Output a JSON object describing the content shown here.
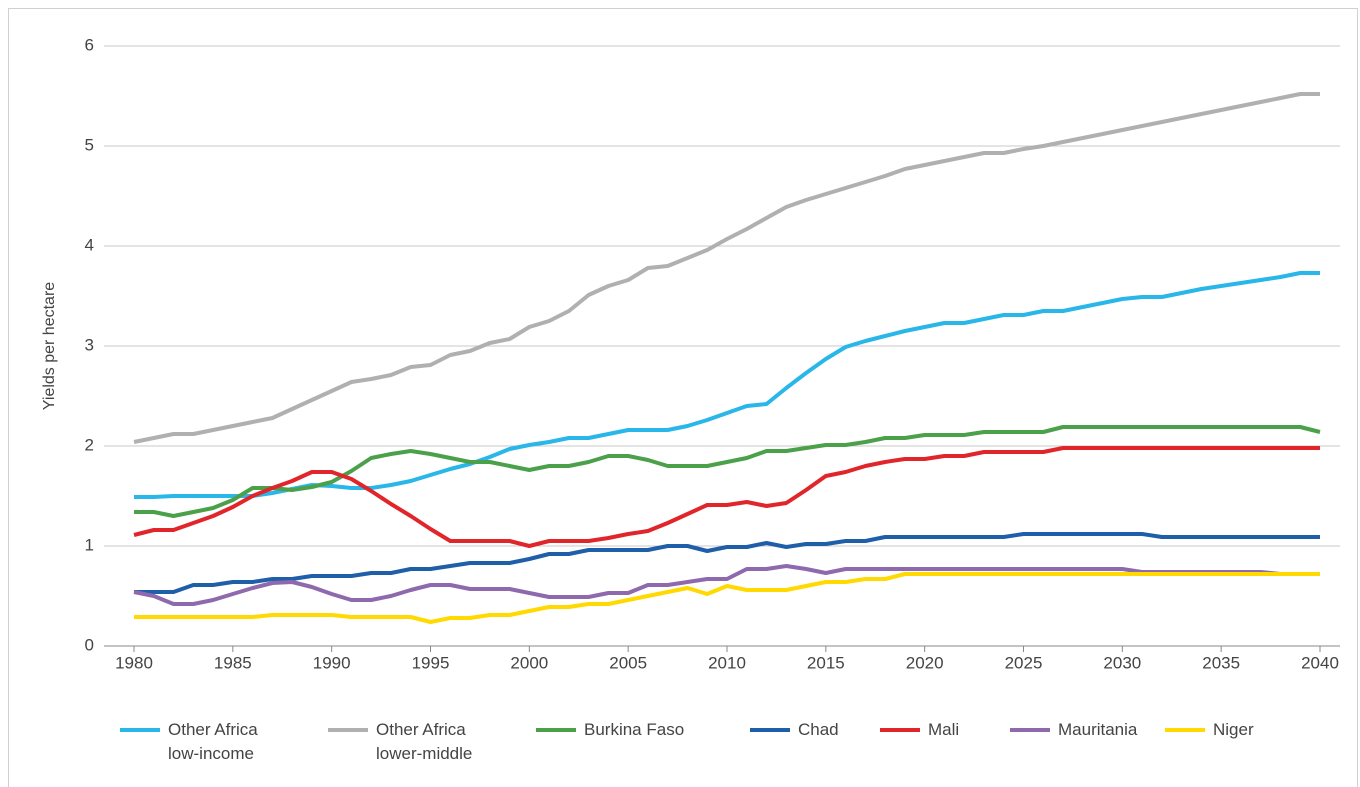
{
  "chart_data": {
    "type": "line",
    "y_label": "Yields per hectare",
    "x": [
      1980,
      1981,
      1982,
      1983,
      1984,
      1985,
      1986,
      1987,
      1988,
      1989,
      1990,
      1991,
      1992,
      1993,
      1994,
      1995,
      1996,
      1997,
      1998,
      1999,
      2000,
      2001,
      2002,
      2003,
      2004,
      2005,
      2006,
      2007,
      2008,
      2009,
      2010,
      2011,
      2012,
      2013,
      2014,
      2015,
      2016,
      2017,
      2018,
      2019,
      2020,
      2021,
      2022,
      2023,
      2024,
      2025,
      2026,
      2027,
      2028,
      2029,
      2030,
      2031,
      2032,
      2033,
      2034,
      2035,
      2036,
      2037,
      2038,
      2039,
      2040
    ],
    "xlim": [
      1980,
      2040
    ],
    "xticks": [
      1980,
      1985,
      1990,
      1995,
      2000,
      2005,
      2010,
      2015,
      2020,
      2025,
      2030,
      2035,
      2040
    ],
    "ylim": [
      0,
      6
    ],
    "yticks": [
      0,
      1,
      2,
      3,
      4,
      5,
      6
    ],
    "grid": true,
    "series": [
      {
        "name": "Other Africa low-income",
        "color": "#29b6e8",
        "values": [
          1.49,
          1.49,
          1.5,
          1.5,
          1.5,
          1.5,
          1.5,
          1.53,
          1.57,
          1.61,
          1.6,
          1.58,
          1.58,
          1.61,
          1.65,
          1.71,
          1.77,
          1.82,
          1.89,
          1.97,
          2.01,
          2.04,
          2.08,
          2.08,
          2.12,
          2.16,
          2.16,
          2.16,
          2.2,
          2.26,
          2.33,
          2.4,
          2.42,
          2.58,
          2.73,
          2.87,
          2.99,
          3.05,
          3.1,
          3.15,
          3.19,
          3.23,
          3.23,
          3.27,
          3.31,
          3.31,
          3.35,
          3.35,
          3.39,
          3.43,
          3.47,
          3.49,
          3.49,
          3.53,
          3.57,
          3.6,
          3.63,
          3.66,
          3.69,
          3.73,
          3.73
        ]
      },
      {
        "name": "Other Africa lower-middle",
        "color": "#b0b0b0",
        "values": [
          2.04,
          2.08,
          2.12,
          2.12,
          2.16,
          2.2,
          2.24,
          2.28,
          2.37,
          2.46,
          2.55,
          2.64,
          2.67,
          2.71,
          2.79,
          2.81,
          2.91,
          2.95,
          3.03,
          3.07,
          3.19,
          3.25,
          3.35,
          3.51,
          3.6,
          3.66,
          3.78,
          3.8,
          3.88,
          3.96,
          4.07,
          4.17,
          4.28,
          4.39,
          4.46,
          4.52,
          4.58,
          4.64,
          4.7,
          4.77,
          4.81,
          4.85,
          4.89,
          4.93,
          4.93,
          4.97,
          5.0,
          5.04,
          5.08,
          5.12,
          5.16,
          5.2,
          5.24,
          5.28,
          5.32,
          5.36,
          5.4,
          5.44,
          5.48,
          5.52,
          5.52
        ]
      },
      {
        "name": "Burkina Faso",
        "color": "#4aa14a",
        "values": [
          1.34,
          1.34,
          1.3,
          1.34,
          1.38,
          1.46,
          1.58,
          1.58,
          1.56,
          1.59,
          1.64,
          1.75,
          1.88,
          1.92,
          1.95,
          1.92,
          1.88,
          1.84,
          1.84,
          1.8,
          1.76,
          1.8,
          1.8,
          1.84,
          1.9,
          1.9,
          1.86,
          1.8,
          1.8,
          1.8,
          1.84,
          1.88,
          1.95,
          1.95,
          1.98,
          2.01,
          2.01,
          2.04,
          2.08,
          2.08,
          2.11,
          2.11,
          2.11,
          2.14,
          2.14,
          2.14,
          2.14,
          2.19,
          2.19,
          2.19,
          2.19,
          2.19,
          2.19,
          2.19,
          2.19,
          2.19,
          2.19,
          2.19,
          2.19,
          2.19,
          2.14
        ]
      },
      {
        "name": "Chad",
        "color": "#1f5ea8",
        "values": [
          0.54,
          0.54,
          0.54,
          0.61,
          0.61,
          0.64,
          0.64,
          0.67,
          0.67,
          0.7,
          0.7,
          0.7,
          0.73,
          0.73,
          0.77,
          0.77,
          0.8,
          0.83,
          0.83,
          0.83,
          0.87,
          0.92,
          0.92,
          0.96,
          0.96,
          0.96,
          0.96,
          1.0,
          1.0,
          0.95,
          0.99,
          0.99,
          1.03,
          0.99,
          1.02,
          1.02,
          1.05,
          1.05,
          1.09,
          1.09,
          1.09,
          1.09,
          1.09,
          1.09,
          1.09,
          1.12,
          1.12,
          1.12,
          1.12,
          1.12,
          1.12,
          1.12,
          1.09,
          1.09,
          1.09,
          1.09,
          1.09,
          1.09,
          1.09,
          1.09,
          1.09
        ]
      },
      {
        "name": "Mali",
        "color": "#e0262b",
        "values": [
          1.11,
          1.16,
          1.16,
          1.23,
          1.3,
          1.39,
          1.5,
          1.58,
          1.65,
          1.74,
          1.74,
          1.67,
          1.55,
          1.42,
          1.3,
          1.17,
          1.05,
          1.05,
          1.05,
          1.05,
          1.0,
          1.05,
          1.05,
          1.05,
          1.08,
          1.12,
          1.15,
          1.23,
          1.32,
          1.41,
          1.41,
          1.44,
          1.4,
          1.43,
          1.56,
          1.7,
          1.74,
          1.8,
          1.84,
          1.87,
          1.87,
          1.9,
          1.9,
          1.94,
          1.94,
          1.94,
          1.94,
          1.98,
          1.98,
          1.98,
          1.98,
          1.98,
          1.98,
          1.98,
          1.98,
          1.98,
          1.98,
          1.98,
          1.98,
          1.98,
          1.98
        ]
      },
      {
        "name": "Mauritania",
        "color": "#8e69ad",
        "values": [
          0.54,
          0.5,
          0.42,
          0.42,
          0.46,
          0.52,
          0.58,
          0.63,
          0.64,
          0.59,
          0.52,
          0.46,
          0.46,
          0.5,
          0.56,
          0.61,
          0.61,
          0.57,
          0.57,
          0.57,
          0.53,
          0.49,
          0.49,
          0.49,
          0.53,
          0.53,
          0.61,
          0.61,
          0.64,
          0.67,
          0.67,
          0.77,
          0.77,
          0.8,
          0.77,
          0.73,
          0.77,
          0.77,
          0.77,
          0.77,
          0.77,
          0.77,
          0.77,
          0.77,
          0.77,
          0.77,
          0.77,
          0.77,
          0.77,
          0.77,
          0.77,
          0.74,
          0.74,
          0.74,
          0.74,
          0.74,
          0.74,
          0.74,
          0.72,
          0.72,
          0.72
        ]
      },
      {
        "name": "Niger",
        "color": "#ffd900",
        "values": [
          0.29,
          0.29,
          0.29,
          0.29,
          0.29,
          0.29,
          0.29,
          0.31,
          0.31,
          0.31,
          0.31,
          0.29,
          0.29,
          0.29,
          0.29,
          0.24,
          0.28,
          0.28,
          0.31,
          0.31,
          0.35,
          0.39,
          0.39,
          0.42,
          0.42,
          0.46,
          0.5,
          0.54,
          0.58,
          0.52,
          0.6,
          0.56,
          0.56,
          0.56,
          0.6,
          0.64,
          0.64,
          0.67,
          0.67,
          0.72,
          0.72,
          0.72,
          0.72,
          0.72,
          0.72,
          0.72,
          0.72,
          0.72,
          0.72,
          0.72,
          0.72,
          0.72,
          0.72,
          0.72,
          0.72,
          0.72,
          0.72,
          0.72,
          0.72,
          0.72,
          0.72
        ]
      }
    ]
  }
}
